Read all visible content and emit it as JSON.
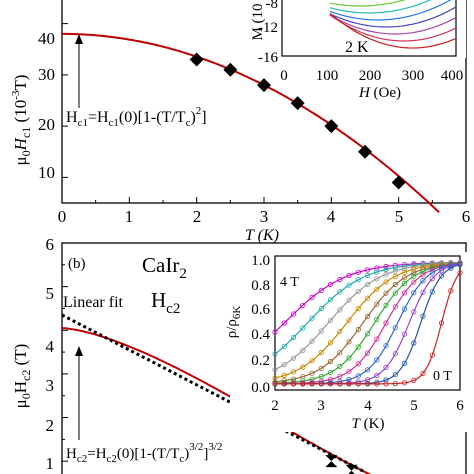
{
  "chart_data": [
    {
      "type": "line",
      "panel_label": "",
      "ylabel": "μ0Hc1 (10-3 T)",
      "xlabel": "T (K)",
      "xlim": [
        0,
        6
      ],
      "ylim": [
        5,
        45
      ],
      "xticks": [
        "0",
        "1",
        "2",
        "3",
        "4",
        "5",
        "6"
      ],
      "yticks": [
        "10",
        "20",
        "30",
        "40"
      ],
      "grid": false,
      "fit_curve": {
        "name": "",
        "color": "#c00000",
        "hc0": 38.0,
        "tc": 5.85,
        "form": "Hc1(0)[1-(T/Tc)^2]"
      },
      "series": [
        {
          "name": "",
          "marker": "diamond",
          "x": [
            2.0,
            2.5,
            3.0,
            3.5,
            4.0,
            4.5,
            5.0
          ],
          "y": [
            33.0,
            31.0,
            28.0,
            24.5,
            20.0,
            15.0,
            9.0
          ]
        }
      ],
      "annotations": {
        "formula": "Hc1=Hc1(0)[1-(T/Tc)2]",
        "formula_parts": {
          "main": "H",
          "sub_c1": "c1",
          "eq": "=H",
          "sub_c1b": "c1",
          "mid": "(0)[1-(T/T",
          "sub_c": "c",
          "close": ")",
          "sup": "2",
          "end": "]"
        }
      },
      "inset": {
        "type": "line",
        "xlabel": "H (Oe)",
        "ylabel": "M (10",
        "xlim": [
          0,
          400
        ],
        "ylim": [
          -16,
          -4
        ],
        "xticks": [
          "0",
          "100",
          "200",
          "300",
          "400"
        ],
        "yticks": [
          "-8",
          "-12",
          "-16"
        ],
        "label": "2 K",
        "curve_colors": [
          "#66cc33",
          "#22bbbb",
          "#2277ee",
          "#4444cc",
          "#aa44aa",
          "#cc3355",
          "#cc2222"
        ]
      }
    },
    {
      "type": "line",
      "panel_label": "(b)",
      "title": "CaIr2",
      "title_parts": {
        "main": "CaIr",
        "sub": "2"
      },
      "field_label": "Hc2",
      "ylabel": "μ0Hc2 (T)",
      "xlabel": "",
      "xlim": [
        0,
        6
      ],
      "ylim": [
        0.5,
        6
      ],
      "yticks": [
        "1",
        "2",
        "3",
        "4",
        "5",
        "6"
      ],
      "grid": false,
      "linear_fit": {
        "label": "Linear fit",
        "y0": 4.35,
        "slope": -0.8
      },
      "fit_curve": {
        "color": "#c00000",
        "hc0": 4.05,
        "tc": 5.85,
        "form": "Hc2(0)[1-(T/Tc)3/2]3/2"
      },
      "series": [
        {
          "name": "",
          "marker": "bowtie",
          "x": [
            3.0,
            4.0,
            4.3
          ],
          "y": [
            2.05,
            1.0,
            0.78
          ]
        }
      ],
      "annotations": {
        "formula": "Hc2=Hc2(0)[1-(T/Tc)3/2]3/2",
        "formula_parts": {
          "main": "H",
          "sub_c2": "c2",
          "eq": "=H",
          "sub_c2b": "c2",
          "mid": "(0)[1-(T/T",
          "sub_c": "c",
          "close": ")",
          "sup1": "3/2",
          "end": "]",
          "sup2": "3/2"
        }
      },
      "inset": {
        "type": "line",
        "xlabel": "T (K)",
        "ylabel": "ρ/ρ6K",
        "ylabel_parts": {
          "main": "ρ/ρ",
          "sub": "6K"
        },
        "xlim": [
          2,
          6
        ],
        "ylim": [
          -0.05,
          1.05
        ],
        "xticks": [
          "2",
          "3",
          "4",
          "5",
          "6"
        ],
        "yticks": [
          "0.0",
          "0.2",
          "0.4",
          "0.6",
          "0.8",
          "1.0"
        ],
        "label_top": "4 T",
        "label_bottom": "0 T",
        "curve_colors": [
          "#cc00cc",
          "#22aaaa",
          "#999999",
          "#cc8800",
          "#996633",
          "#33aa33",
          "#cc3399",
          "#3366cc",
          "#9944cc",
          "#2255aa",
          "#cc2222"
        ],
        "transition_centers": [
          2.2,
          2.7,
          3.15,
          3.55,
          3.9,
          4.15,
          4.4,
          4.65,
          4.9,
          5.15,
          5.6
        ]
      }
    }
  ]
}
